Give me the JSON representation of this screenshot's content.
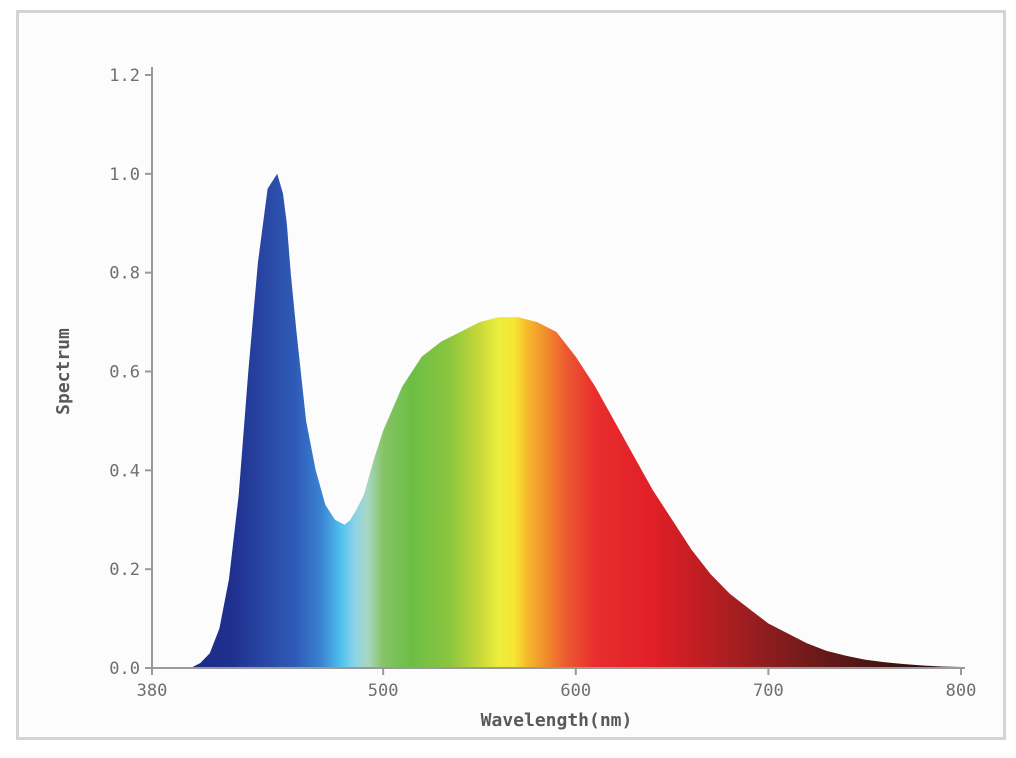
{
  "chart_data": {
    "type": "area",
    "title": "",
    "xlabel": "Wavelength(nm)",
    "ylabel": "Spectrum",
    "xlim": [
      380,
      800
    ],
    "ylim": [
      0,
      1.2
    ],
    "x_ticks": [
      380,
      500,
      600,
      700,
      800
    ],
    "x_tick_labels": [
      "380",
      "500",
      "600",
      "700",
      "800"
    ],
    "y_ticks": [
      0,
      0.2,
      0.4,
      0.6,
      0.8,
      1.0,
      1.2
    ],
    "y_tick_labels": [
      "0.0",
      "0.2",
      "0.4",
      "0.6",
      "0.8",
      "1.0",
      "1.2"
    ],
    "grid": false,
    "legend": "none",
    "fill": "visible-spectrum color gradient by wavelength",
    "series": [
      {
        "x": [
          400,
          405,
          410,
          415,
          420,
          425,
          430,
          435,
          440,
          445,
          448,
          450,
          452,
          455,
          460,
          465,
          470,
          475,
          480,
          483,
          486,
          490,
          495,
          500,
          510,
          520,
          530,
          540,
          550,
          560,
          570,
          580,
          590,
          600,
          610,
          620,
          630,
          640,
          650,
          660,
          670,
          680,
          690,
          700,
          710,
          720,
          730,
          740,
          750,
          760,
          770,
          780,
          790,
          800
        ],
        "y": [
          0.0,
          0.01,
          0.03,
          0.08,
          0.18,
          0.35,
          0.6,
          0.82,
          0.97,
          1.0,
          0.96,
          0.9,
          0.8,
          0.68,
          0.5,
          0.4,
          0.33,
          0.3,
          0.29,
          0.3,
          0.32,
          0.35,
          0.42,
          0.48,
          0.57,
          0.63,
          0.66,
          0.68,
          0.7,
          0.71,
          0.71,
          0.7,
          0.68,
          0.63,
          0.57,
          0.5,
          0.43,
          0.36,
          0.3,
          0.24,
          0.19,
          0.15,
          0.12,
          0.09,
          0.07,
          0.05,
          0.035,
          0.025,
          0.017,
          0.012,
          0.008,
          0.005,
          0.003,
          0.002
        ]
      }
    ]
  }
}
